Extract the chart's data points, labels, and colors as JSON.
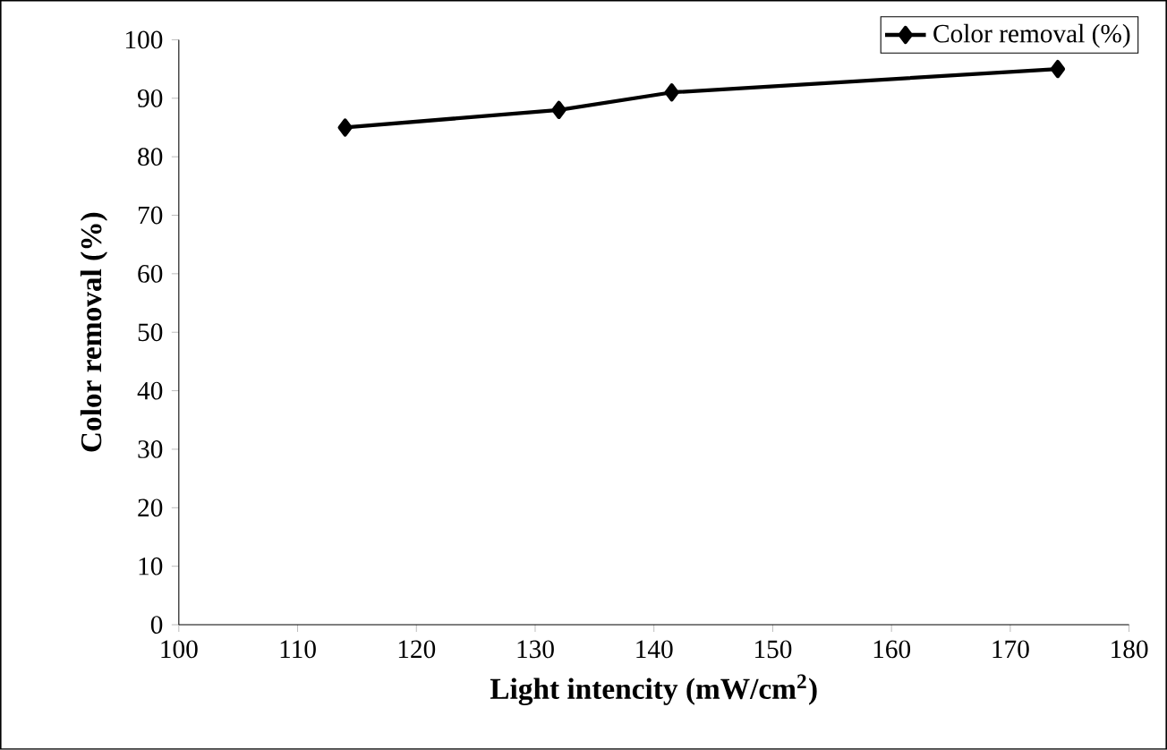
{
  "chart_data": {
    "type": "line",
    "xlabel": "Light intencity (mW/cm$^{2}$)",
    "ylabel": "Color removal (%)",
    "series": [
      {
        "name": "Color removal (%)",
        "color": "#000000",
        "x": [
          114,
          132,
          141.5,
          174
        ],
        "values": [
          85,
          88,
          91,
          95
        ]
      }
    ],
    "xlim": [
      100,
      180
    ],
    "ylim": [
      0,
      100
    ],
    "xticks": [
      100,
      110,
      120,
      130,
      140,
      150,
      160,
      170,
      180
    ],
    "yticks": [
      0,
      10,
      20,
      30,
      40,
      50,
      60,
      70,
      80,
      90,
      100
    ],
    "grid": false,
    "legend": "top right",
    "marker": "diamond",
    "line_style": "solid"
  }
}
